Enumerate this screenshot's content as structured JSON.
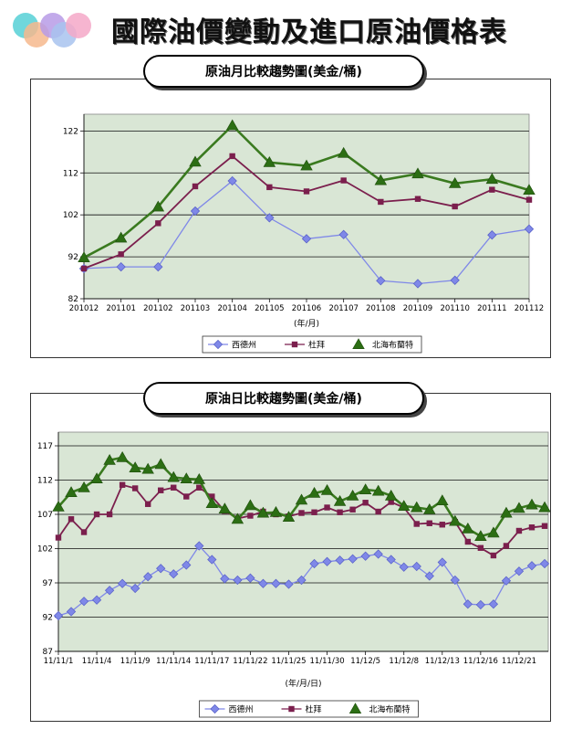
{
  "page": {
    "title": "國際油價變動及進口原油價格表",
    "colors": {
      "plot_bg": "#d9e6d5",
      "wti": "#7f88e8",
      "dubai": "#7b1f4d",
      "brent": "#3a7a1f",
      "brent_marker": "#2c6e14"
    }
  },
  "chart_data": [
    {
      "type": "line",
      "title": "原油月比較趨勢圖(美金/桶)",
      "xlabel": "(年/月)",
      "ylabel": "",
      "ylim": [
        82,
        126
      ],
      "yticks": [
        82,
        92,
        102,
        112,
        122
      ],
      "grid": true,
      "legend_position": "bottom",
      "categories": [
        "201012",
        "201101",
        "201102",
        "201103",
        "201104",
        "201105",
        "201106",
        "201107",
        "201108",
        "201109",
        "201110",
        "201111",
        "201112"
      ],
      "series": [
        {
          "name": "西德州",
          "values": [
            89.2,
            89.6,
            89.6,
            102.9,
            110.1,
            101.3,
            96.3,
            97.3,
            86.3,
            85.6,
            86.4,
            97.2,
            98.6
          ]
        },
        {
          "name": "杜拜",
          "values": [
            89.2,
            92.6,
            100.0,
            108.8,
            116.0,
            108.6,
            107.6,
            110.2,
            105.1,
            105.8,
            104.0,
            108.0,
            105.6
          ]
        },
        {
          "name": "北海布蘭特",
          "values": [
            91.8,
            96.5,
            103.9,
            114.6,
            123.3,
            114.5,
            113.7,
            116.7,
            110.2,
            111.8,
            109.5,
            110.5,
            107.9
          ]
        }
      ]
    },
    {
      "type": "line",
      "title": "原油日比較趨勢圖(美金/桶)",
      "xlabel": "(年/月/日)",
      "ylabel": "",
      "ylim": [
        87,
        119
      ],
      "yticks": [
        87,
        92,
        97,
        102,
        107,
        112,
        117
      ],
      "grid": true,
      "legend_position": "bottom",
      "tick_labels": [
        "11/11/1",
        "11/11/4",
        "11/11/9",
        "11/11/14",
        "11/11/17",
        "11/11/22",
        "11/11/25",
        "11/11/30",
        "11/12/5",
        "11/12/8",
        "11/12/13",
        "11/12/16",
        "11/12/21"
      ],
      "series": [
        {
          "name": "西德州",
          "values": [
            92.2,
            92.8,
            94.3,
            94.5,
            95.9,
            96.9,
            96.2,
            97.9,
            99.1,
            98.3,
            99.6,
            102.4,
            100.4,
            97.6,
            97.4,
            97.7,
            96.9,
            96.9,
            96.8,
            97.4,
            99.8,
            100.1,
            100.3,
            100.5,
            100.9,
            101.2,
            100.4,
            99.3,
            99.4,
            98.0,
            100.0,
            97.4,
            93.9,
            93.8,
            93.9,
            97.3,
            98.7,
            99.5,
            99.8
          ]
        },
        {
          "name": "杜拜",
          "values": [
            103.6,
            106.3,
            104.4,
            107.0,
            107.0,
            111.3,
            110.8,
            108.5,
            110.5,
            110.9,
            109.6,
            110.9,
            109.6,
            107.5,
            106.4,
            106.8,
            107.4,
            107.0,
            106.7,
            107.2,
            107.3,
            108.0,
            107.3,
            107.7,
            108.7,
            107.4,
            108.8,
            108.0,
            105.6,
            105.7,
            105.5,
            105.9,
            103.0,
            102.1,
            101.0,
            102.4,
            104.6,
            105.1,
            105.3
          ]
        },
        {
          "name": "北海布蘭特",
          "values": [
            108.1,
            110.2,
            110.9,
            112.2,
            114.9,
            115.3,
            113.8,
            113.6,
            114.3,
            112.4,
            112.2,
            112.1,
            108.6,
            107.8,
            106.3,
            108.3,
            107.2,
            107.3,
            106.6,
            109.1,
            110.1,
            110.5,
            108.9,
            109.7,
            110.6,
            110.4,
            109.7,
            108.2,
            108.0,
            107.7,
            109.0,
            106.0,
            104.9,
            103.8,
            104.3,
            107.2,
            107.9,
            108.4,
            108.0
          ]
        }
      ]
    }
  ]
}
